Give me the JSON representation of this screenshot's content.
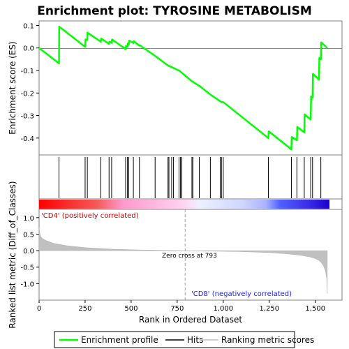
{
  "chart_data": {
    "type": "line",
    "title": "Enrichment plot: TYROSINE METABOLISM",
    "panels": {
      "enrichment": {
        "ylabel": "Enrichment score (ES)",
        "ylim": [
          -0.475,
          0.12
        ],
        "yticks": [
          0.1,
          0.0,
          -0.1,
          -0.2,
          -0.3,
          -0.4
        ],
        "ytick_labels": [
          "0.1",
          "0.0",
          "-0.1",
          "-0.2",
          "-0.3",
          "-0.4"
        ],
        "series": [
          {
            "name": "Enrichment profile",
            "color": "#00ff00",
            "x": [
              0,
              108,
              109,
              250,
              252,
              262,
              263,
              335,
              337,
              380,
              382,
              394,
              396,
              470,
              472,
              480,
              482,
              487,
              489,
              512,
              514,
              545,
              547,
              630,
              700,
              720,
              760,
              775,
              830,
              870,
              930,
              990,
              1000,
              1245,
              1247,
              1370,
              1372,
              1400,
              1402,
              1440,
              1442,
              1475,
              1477,
              1485,
              1487,
              1520,
              1522,
              1530,
              1532,
              1565
            ],
            "values": [
              0.0,
              -0.068,
              0.095,
              0.005,
              0.038,
              0.035,
              0.068,
              0.028,
              0.042,
              0.018,
              0.028,
              0.022,
              0.038,
              -0.005,
              0.01,
              0.005,
              0.02,
              0.015,
              0.033,
              0.022,
              0.03,
              0.01,
              0.012,
              -0.035,
              -0.078,
              -0.085,
              -0.1,
              -0.11,
              -0.148,
              -0.168,
              -0.207,
              -0.24,
              -0.24,
              -0.4,
              -0.37,
              -0.45,
              -0.395,
              -0.41,
              -0.35,
              -0.375,
              -0.295,
              -0.318,
              -0.215,
              -0.22,
              -0.115,
              -0.14,
              -0.045,
              -0.05,
              0.025,
              0.0
            ]
          }
        ]
      },
      "hits": {
        "legend_name": "Hits",
        "positions": [
          108,
          250,
          262,
          335,
          380,
          394,
          470,
          480,
          487,
          512,
          545,
          630,
          700,
          705,
          720,
          730,
          760,
          768,
          775,
          830,
          835,
          870,
          930,
          985,
          990,
          1000,
          1245,
          1370,
          1400,
          1440,
          1475,
          1485,
          1530
        ]
      },
      "ranked_metric": {
        "legend_name": "Ranking metric scores",
        "ylabel": "Ranked list metric (Diff_of_Classes)",
        "xlabel": "Rank in Ordered Dataset",
        "ylim": [
          -1.5,
          1.25
        ],
        "yticks": [
          1.0,
          0.5,
          0.0,
          -0.5,
          -1.0
        ],
        "ytick_labels": [
          "1.0",
          "0.5",
          "0.0",
          "-0.5",
          "-1.0"
        ],
        "xlim": [
          0,
          1645
        ],
        "xticks": [
          0,
          250,
          500,
          750,
          1000,
          1250,
          1500
        ],
        "xtick_labels": [
          "0",
          "250",
          "500",
          "750",
          "1,000",
          "1,250",
          "1,500"
        ],
        "zero_cross_rank": 793,
        "zero_cross_label": "Zero cross at 793",
        "positive_label": "'CD4' (positively correlated)",
        "negative_label": "'CD8' (negatively correlated)",
        "profile": {
          "x": [
            0,
            5,
            10,
            20,
            40,
            80,
            150,
            250,
            400,
            550,
            700,
            793,
            900,
            1100,
            1250,
            1350,
            1420,
            1470,
            1500,
            1520,
            1535,
            1545,
            1555,
            1562,
            1565
          ],
          "values": [
            0.7,
            0.5,
            0.42,
            0.36,
            0.3,
            0.22,
            0.15,
            0.09,
            0.045,
            0.02,
            0.008,
            0.0,
            -0.01,
            -0.03,
            -0.06,
            -0.1,
            -0.14,
            -0.19,
            -0.24,
            -0.3,
            -0.38,
            -0.47,
            -0.62,
            -0.85,
            -1.3
          ]
        }
      }
    },
    "legend": [
      "Enrichment profile",
      "Hits",
      "Ranking metric scores"
    ]
  }
}
